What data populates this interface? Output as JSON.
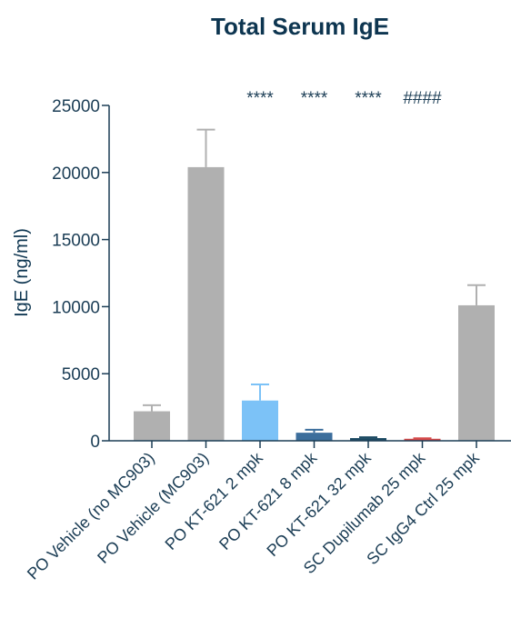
{
  "chart_data": {
    "type": "bar",
    "title": "Total Serum IgE",
    "ylabel": "IgE (ng/ml)",
    "xlabel": "",
    "ylim": [
      0,
      25000
    ],
    "yticks": [
      "0",
      "5000",
      "10000",
      "15000",
      "20000",
      "25000"
    ],
    "categories": [
      "PO Vehicle (no MC903)",
      "PO Vehicle (MC903)",
      "PO KT-621 2 mpk",
      "PO KT-621 8 mpk",
      "PO KT-621 32 mpk",
      "SC Dupilumab 25 mpk",
      "SC IgG4 Ctrl 25 mpk"
    ],
    "values": [
      2200,
      20400,
      3000,
      600,
      200,
      150,
      10100
    ],
    "errors": [
      450,
      2800,
      1200,
      220,
      60,
      40,
      1500
    ],
    "significance": [
      "",
      "",
      "****",
      "****",
      "****",
      "####",
      ""
    ],
    "colors": [
      "#b0b0b0",
      "#b0b0b0",
      "#7cc2f7",
      "#3c6e9c",
      "#1c4a63",
      "#d64a4a",
      "#b0b0b0"
    ],
    "grid": false
  }
}
